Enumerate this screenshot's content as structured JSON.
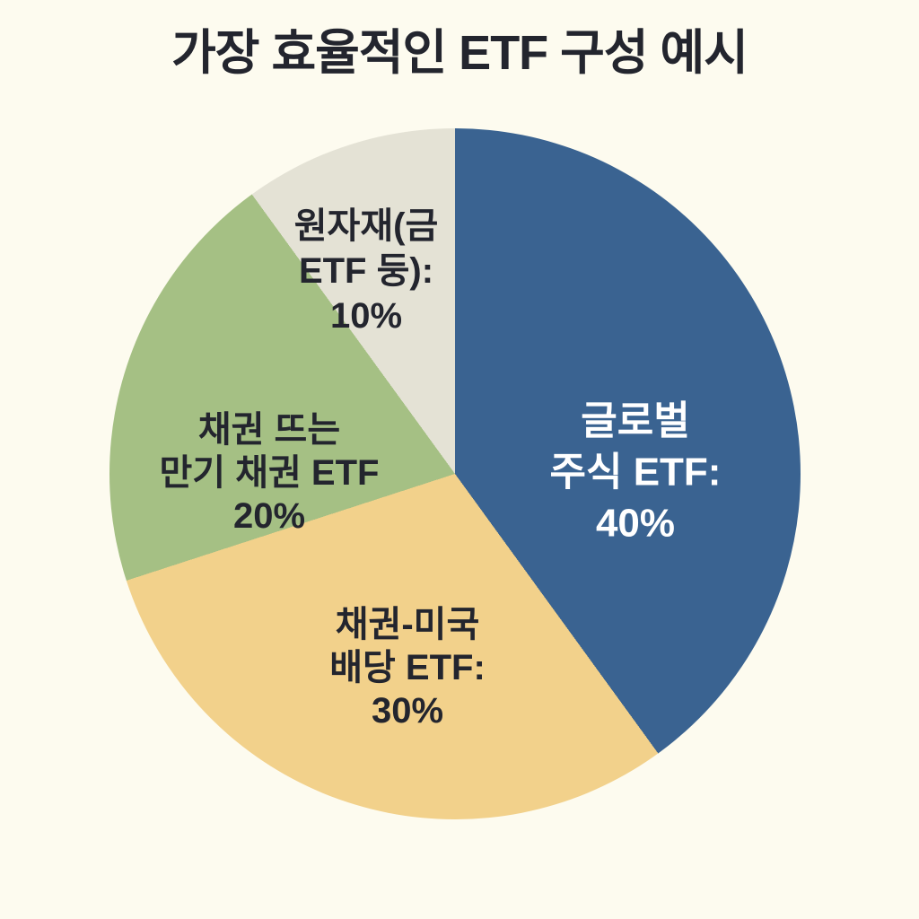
{
  "page": {
    "background_color": "#FDFBEF",
    "title_color": "#23252E"
  },
  "header": {
    "title": "가장 효율적인 ETF 구성 예시"
  },
  "chart_data": {
    "type": "pie",
    "title": "가장 효율적인 ETF 구성 예시",
    "legend": "none",
    "start_angle_deg": 0,
    "direction": "clockwise",
    "slices": [
      {
        "label": "글로벌 주식 ETF",
        "value_pct": 40,
        "color": "#3A6391",
        "text_color": "#FFFFFF",
        "display_lines": [
          "글로벌",
          "주식 ETF:",
          "40%"
        ]
      },
      {
        "label": "채권-미국 배당 ETF",
        "value_pct": 30,
        "color": "#F2D18B",
        "text_color": "#23252E",
        "display_lines": [
          "채권-미국",
          "배당 ETF:",
          "30%"
        ]
      },
      {
        "label": "채권 뜨는 만기 채권 ETF",
        "value_pct": 20,
        "color": "#A5C084",
        "text_color": "#23252E",
        "display_lines": [
          "채권 뜨는",
          "만기 채권 ETF",
          "20%"
        ]
      },
      {
        "label": "원자재(금 ETF 둥)",
        "value_pct": 10,
        "color": "#E4E2D5",
        "text_color": "#23252E",
        "display_lines": [
          "원자재(금",
          "ETF 둥):",
          "10%"
        ]
      }
    ]
  }
}
